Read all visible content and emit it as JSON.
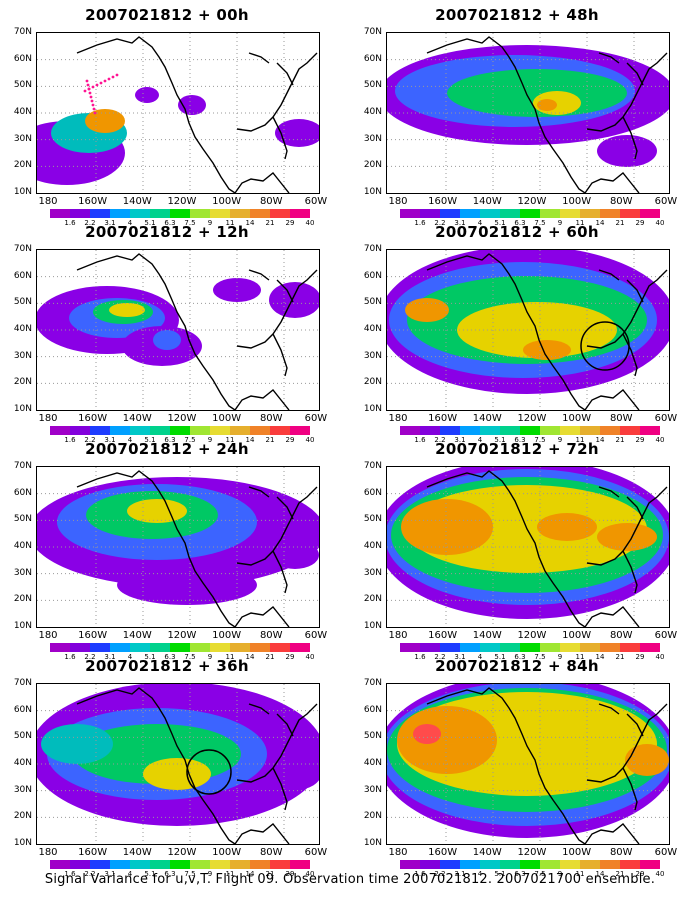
{
  "panels": [
    {
      "title": "2007021812 + 00h",
      "blobs": [
        [
          "#8a00e6",
          30,
          120,
          58,
          32
        ],
        [
          "#00bcbc",
          52,
          100,
          38,
          20
        ],
        [
          "#f09600",
          68,
          88,
          20,
          12
        ],
        [
          "#8a00e6",
          110,
          62,
          12,
          8
        ],
        [
          "#8a00e6",
          155,
          72,
          14,
          10
        ],
        [
          "#8a00e6",
          262,
          100,
          24,
          14
        ]
      ],
      "circle": null,
      "dots": true
    },
    {
      "title": "2007021812 + 12h",
      "blobs": [
        [
          "#8a00e6",
          70,
          70,
          72,
          34
        ],
        [
          "#3c64ff",
          80,
          68,
          48,
          20
        ],
        [
          "#00c864",
          86,
          62,
          30,
          12
        ],
        [
          "#e6d200",
          90,
          60,
          18,
          7
        ],
        [
          "#8a00e6",
          200,
          40,
          24,
          12
        ],
        [
          "#8a00e6",
          258,
          50,
          26,
          18
        ],
        [
          "#8a00e6",
          125,
          96,
          40,
          20
        ],
        [
          "#3c64ff",
          130,
          90,
          14,
          10
        ]
      ],
      "circle": null,
      "dots": false
    },
    {
      "title": "2007021812 + 24h",
      "blobs": [
        [
          "#8a00e6",
          140,
          65,
          148,
          55
        ],
        [
          "#3c64ff",
          120,
          55,
          100,
          38
        ],
        [
          "#00c864",
          115,
          48,
          66,
          24
        ],
        [
          "#e6d200",
          120,
          44,
          30,
          12
        ],
        [
          "#8a00e6",
          150,
          118,
          70,
          20
        ],
        [
          "#8a00e6",
          258,
          88,
          24,
          14
        ]
      ],
      "circle": null,
      "dots": false
    },
    {
      "title": "2007021812 + 36h",
      "blobs": [
        [
          "#8a00e6",
          140,
          70,
          148,
          72
        ],
        [
          "#3c64ff",
          120,
          70,
          110,
          46
        ],
        [
          "#00c864",
          120,
          70,
          84,
          30
        ],
        [
          "#e6d200",
          140,
          90,
          34,
          16
        ],
        [
          "#00bcbc",
          40,
          60,
          36,
          20
        ],
        [
          "#8a00e6",
          258,
          90,
          26,
          16
        ]
      ],
      "circle": [
        172,
        88,
        22
      ],
      "dots": false
    },
    {
      "title": "2007021812 + 48h",
      "blobs": [
        [
          "#8a00e6",
          140,
          62,
          148,
          50
        ],
        [
          "#3c64ff",
          128,
          58,
          120,
          36
        ],
        [
          "#00c864",
          150,
          60,
          90,
          24
        ],
        [
          "#e6d200",
          170,
          70,
          24,
          12
        ],
        [
          "#f09600",
          160,
          72,
          10,
          6
        ],
        [
          "#8a00e6",
          240,
          118,
          30,
          16
        ]
      ],
      "circle": null,
      "dots": false
    },
    {
      "title": "2007021812 + 60h",
      "blobs": [
        [
          "#8a00e6",
          140,
          70,
          148,
          74
        ],
        [
          "#3c64ff",
          136,
          70,
          134,
          58
        ],
        [
          "#00c864",
          140,
          70,
          120,
          44
        ],
        [
          "#e6d200",
          150,
          80,
          80,
          28
        ],
        [
          "#f09600",
          160,
          100,
          24,
          10
        ],
        [
          "#f09600",
          40,
          60,
          22,
          12
        ]
      ],
      "circle": [
        218,
        96,
        24
      ],
      "dots": false
    },
    {
      "title": "2007021812 + 72h",
      "blobs": [
        [
          "#8a00e6",
          140,
          72,
          150,
          80
        ],
        [
          "#3c64ff",
          140,
          70,
          142,
          68
        ],
        [
          "#00c864",
          140,
          68,
          136,
          58
        ],
        [
          "#e6d200",
          140,
          62,
          120,
          44
        ],
        [
          "#f09600",
          60,
          60,
          46,
          28
        ],
        [
          "#f09600",
          180,
          60,
          30,
          14
        ],
        [
          "#f09600",
          240,
          70,
          30,
          14
        ]
      ],
      "circle": null,
      "dots": false
    },
    {
      "title": "2007021812 + 84h",
      "blobs": [
        [
          "#8a00e6",
          140,
          72,
          150,
          82
        ],
        [
          "#3c64ff",
          140,
          70,
          146,
          72
        ],
        [
          "#00c864",
          140,
          66,
          140,
          62
        ],
        [
          "#e6d200",
          140,
          60,
          130,
          52
        ],
        [
          "#f09600",
          60,
          56,
          50,
          34
        ],
        [
          "#ff4b4b",
          40,
          50,
          14,
          10
        ],
        [
          "#f09600",
          260,
          76,
          22,
          16
        ]
      ],
      "circle": null,
      "dots": false
    }
  ],
  "axes": {
    "y_labels": [
      "70N",
      "60N",
      "50N",
      "40N",
      "30N",
      "20N",
      "10N"
    ],
    "x_labels": [
      "180",
      "160W",
      "140W",
      "120W",
      "100W",
      "80W",
      "60W"
    ]
  },
  "colorbar": {
    "colors": [
      "#a000c8",
      "#8200dc",
      "#1e3cff",
      "#00a0ff",
      "#00c8c8",
      "#00d28c",
      "#00dc00",
      "#a0e632",
      "#e6dc32",
      "#e6af2d",
      "#f08228",
      "#fa3c3c",
      "#f00082"
    ],
    "labels": [
      "1.6",
      "2.2",
      "3.1",
      "4",
      "5.1",
      "6.3",
      "7.5",
      "9",
      "11",
      "14",
      "21",
      "29",
      "40"
    ]
  },
  "caption": "Signal Variance for u,v,T. Flight 09. Observation time 2007021812. 2007021700 ensemble."
}
